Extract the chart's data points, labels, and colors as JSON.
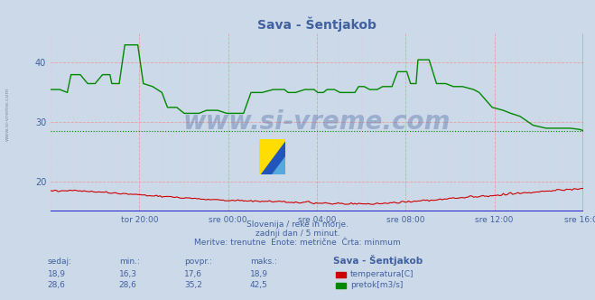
{
  "title": "Sava - Šentjakob",
  "bg_color": "#ccd9e8",
  "plot_bg_color": "#ccd9e8",
  "text_color": "#4060a0",
  "subtitle_lines": [
    "Slovenija / reke in morje.",
    "zadnji dan / 5 minut.",
    "Meritve: trenutne  Enote: metrične  Črta: minmum"
  ],
  "xlabel_ticks": [
    "tor 20:00",
    "sre 00:00",
    "sre 04:00",
    "sre 08:00",
    "sre 12:00",
    "sre 16:00"
  ],
  "ylim": [
    15.0,
    45.0
  ],
  "yticks": [
    20,
    30,
    40
  ],
  "table_headers": [
    "sedaj:",
    "min.:",
    "povpr.:",
    "maks.:",
    "Sava - Šentjakob"
  ],
  "table_row1": [
    "18,9",
    "16,3",
    "17,6",
    "18,9"
  ],
  "table_row2": [
    "28,6",
    "28,6",
    "35,2",
    "42,5"
  ],
  "label_temp": "temperatura[C]",
  "label_pretok": "pretok[m3/s]",
  "temp_color": "#cc0000",
  "pretok_color": "#008800",
  "mean_pretok": 28.6,
  "watermark": "www.si-vreme.com",
  "major_vgrid_color": "#e8a0a0",
  "minor_vgrid_color": "#e8c8c8",
  "hgrid_color": "#e8a0a0",
  "bottom_line_color": "#0000cc",
  "right_line_color": "#cc0000"
}
